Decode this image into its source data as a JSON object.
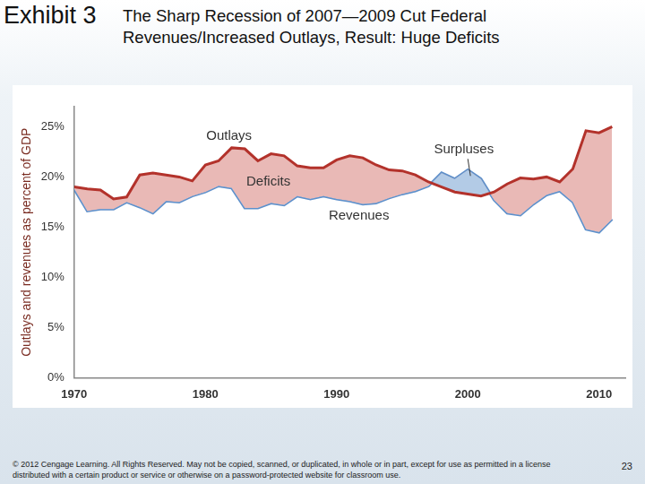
{
  "slide": {
    "exhibit": "Exhibit 3",
    "footer": "© 2012 Cengage Learning. All Rights Reserved. May not be copied, scanned, or duplicated, in whole or in part, except for use as permitted in a license distributed with a certain product or service or otherwise on a password-protected website for classroom use.",
    "page": 23
  },
  "chart_data": {
    "type": "line",
    "title": "The Sharp Recession of 2007—2009 Cut Federal Revenues/Increased Outlays, Result: Huge Deficits",
    "y_label": "Outlays and revenues as percent of GDP",
    "x": [
      1970,
      1971,
      1972,
      1973,
      1974,
      1975,
      1976,
      1977,
      1978,
      1979,
      1980,
      1981,
      1982,
      1983,
      1984,
      1985,
      1986,
      1987,
      1988,
      1989,
      1990,
      1991,
      1992,
      1993,
      1994,
      1995,
      1996,
      1997,
      1998,
      1999,
      2000,
      2001,
      2002,
      2003,
      2004,
      2005,
      2006,
      2007,
      2008,
      2009,
      2010,
      2011
    ],
    "series": [
      {
        "name": "Outlays",
        "color": "#b3322b",
        "values": [
          19.0,
          18.8,
          18.7,
          17.8,
          18.0,
          20.2,
          20.4,
          20.2,
          20.0,
          19.6,
          21.2,
          21.6,
          22.9,
          22.8,
          21.6,
          22.3,
          22.1,
          21.1,
          20.9,
          20.9,
          21.7,
          22.1,
          21.9,
          21.2,
          20.7,
          20.6,
          20.2,
          19.5,
          19.0,
          18.5,
          18.3,
          18.1,
          18.5,
          19.3,
          19.9,
          19.8,
          20.0,
          19.5,
          20.8,
          24.6,
          24.4,
          25.0
        ]
      },
      {
        "name": "Revenues",
        "color": "#5d8fca",
        "values": [
          18.8,
          16.6,
          16.8,
          16.8,
          17.5,
          17.0,
          16.4,
          17.6,
          17.5,
          18.1,
          18.5,
          19.1,
          18.9,
          16.9,
          16.9,
          17.4,
          17.2,
          18.1,
          17.8,
          18.1,
          17.8,
          17.6,
          17.3,
          17.4,
          17.9,
          18.3,
          18.6,
          19.1,
          20.4,
          19.8,
          20.7,
          19.8,
          17.7,
          16.4,
          16.2,
          17.3,
          18.2,
          18.6,
          17.5,
          14.8,
          14.5,
          15.8
        ]
      }
    ],
    "annotations": [
      {
        "text": "Deficits",
        "color": "#e9b9b6"
      },
      {
        "text": "Surpluses",
        "color": "#b3cbe6"
      }
    ],
    "xlim": [
      1970,
      2012
    ],
    "xticks": [
      1970,
      1980,
      1990,
      2000,
      2010
    ],
    "ylim": [
      0,
      27
    ],
    "yticks": [
      {
        "value": 0,
        "label": "0%"
      },
      {
        "value": 5,
        "label": "5%"
      },
      {
        "value": 10,
        "label": "10%"
      },
      {
        "value": 15,
        "label": "15%"
      },
      {
        "value": 20,
        "label": "20%"
      },
      {
        "value": 25,
        "label": "25%"
      }
    ],
    "grid": false
  }
}
